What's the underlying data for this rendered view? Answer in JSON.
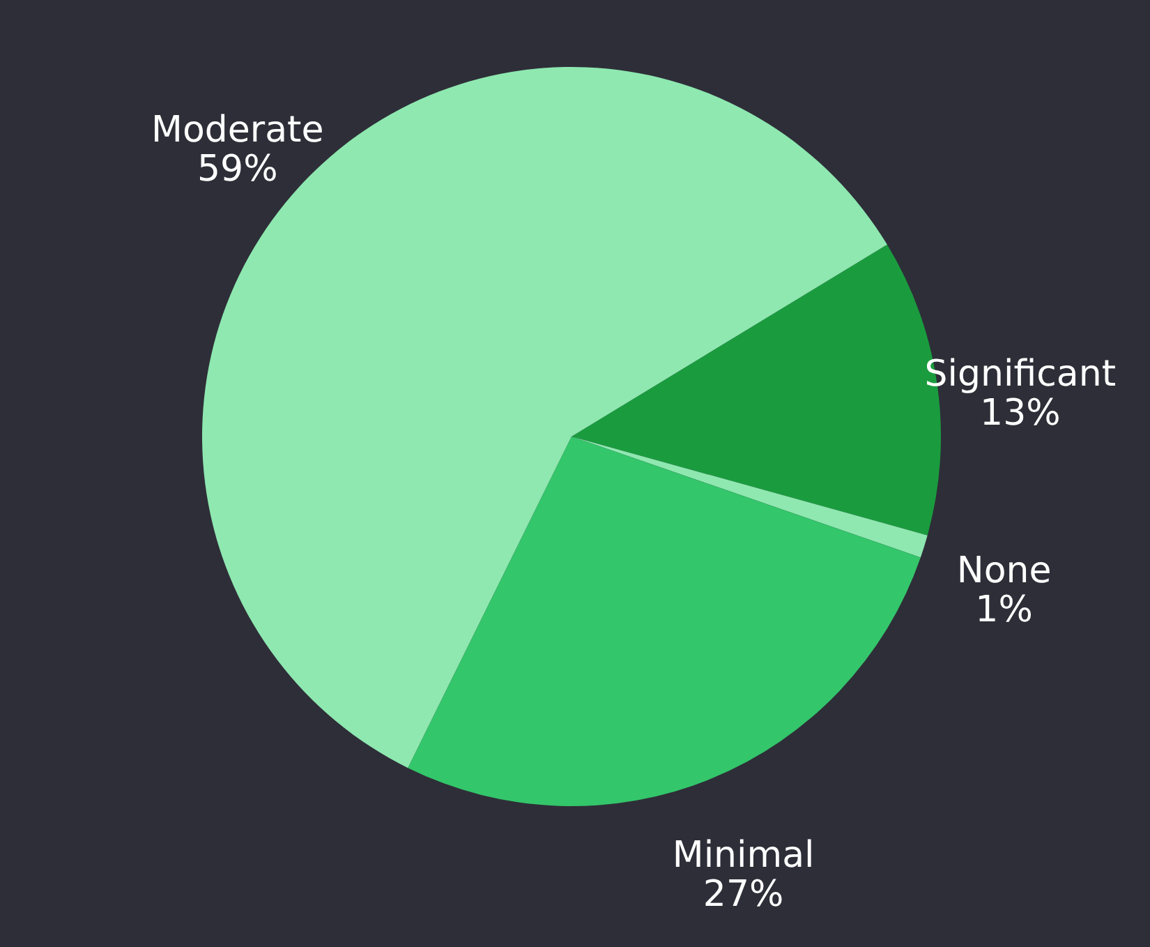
{
  "chart_data": {
    "type": "pie",
    "categories": [
      "Significant",
      "None",
      "Minimal",
      "Moderate"
    ],
    "values": [
      13,
      1,
      27,
      59
    ],
    "value_labels": [
      "13%",
      "1%",
      "27%",
      "59%"
    ],
    "colors": [
      "#1a9c3e",
      "#8ee8b0",
      "#33c66a",
      "#8ee8b0"
    ]
  }
}
